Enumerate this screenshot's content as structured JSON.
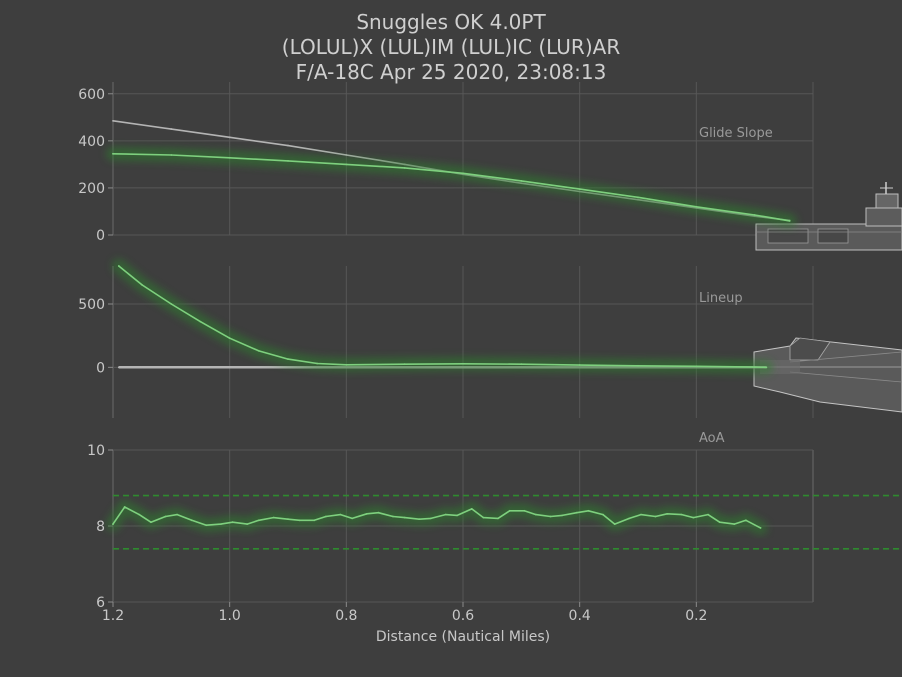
{
  "header": {
    "line1": "Snuggles OK 4.0PT",
    "line2": "(LOLUL)X (LUL)IM  (LUL)IC (LUR)AR",
    "line3": "F/A-18C Apr 25 2020, 23:08:13"
  },
  "chart_data": [
    {
      "type": "line",
      "label": "Glide Slope",
      "x": [
        1.2,
        1.1,
        1.0,
        0.9,
        0.8,
        0.7,
        0.6,
        0.5,
        0.4,
        0.3,
        0.2,
        0.1,
        0.04
      ],
      "series": [
        {
          "role": "ideal",
          "color": "#b4b4b4",
          "values": [
            485,
            450,
            415,
            380,
            340,
            300,
            258,
            220,
            185,
            150,
            115,
            80,
            62
          ]
        },
        {
          "role": "actual",
          "color": "#7ed07e",
          "values": [
            345,
            340,
            328,
            315,
            300,
            285,
            262,
            230,
            195,
            160,
            120,
            85,
            60
          ]
        }
      ],
      "xlim": [
        1.2,
        0.0
      ],
      "ylim": [
        0,
        650
      ],
      "yticks": [
        "0",
        "200",
        "400",
        "600"
      ],
      "ytick_values": [
        0,
        200,
        400,
        600
      ]
    },
    {
      "type": "line",
      "label": "Lineup",
      "x": [
        1.19,
        1.15,
        1.1,
        1.05,
        1.0,
        0.95,
        0.9,
        0.85,
        0.8,
        0.7,
        0.6,
        0.5,
        0.4,
        0.3,
        0.2,
        0.1,
        0.08
      ],
      "series": [
        {
          "role": "ideal",
          "color": "#b4b4b4",
          "values": [
            0,
            0,
            0,
            0,
            0,
            0,
            0,
            0,
            0,
            0,
            0,
            0,
            0,
            0,
            0,
            0,
            0
          ]
        },
        {
          "role": "actual",
          "color": "#7ed07e",
          "values": [
            800,
            650,
            500,
            360,
            230,
            130,
            65,
            30,
            20,
            25,
            28,
            25,
            18,
            12,
            8,
            2,
            0
          ]
        }
      ],
      "xlim": [
        1.2,
        0.0
      ],
      "ylim": [
        -400,
        800
      ],
      "yticks": [
        "0",
        "500"
      ],
      "ytick_values": [
        0,
        500
      ]
    },
    {
      "type": "line",
      "label": "AoA",
      "x": [
        1.2,
        1.18,
        1.155,
        1.135,
        1.11,
        1.09,
        1.065,
        1.04,
        1.015,
        0.995,
        0.97,
        0.95,
        0.925,
        0.9,
        0.88,
        0.855,
        0.835,
        0.81,
        0.79,
        0.765,
        0.745,
        0.72,
        0.7,
        0.675,
        0.655,
        0.63,
        0.61,
        0.585,
        0.565,
        0.54,
        0.52,
        0.495,
        0.475,
        0.45,
        0.43,
        0.405,
        0.385,
        0.36,
        0.34,
        0.315,
        0.295,
        0.27,
        0.25,
        0.225,
        0.205,
        0.18,
        0.16,
        0.135,
        0.115,
        0.09
      ],
      "series": [
        {
          "role": "actual",
          "color": "#7ed07e",
          "values": [
            8.05,
            8.5,
            8.3,
            8.1,
            8.25,
            8.3,
            8.15,
            8.02,
            8.05,
            8.1,
            8.05,
            8.15,
            8.22,
            8.18,
            8.15,
            8.15,
            8.25,
            8.3,
            8.2,
            8.32,
            8.35,
            8.25,
            8.22,
            8.18,
            8.2,
            8.3,
            8.28,
            8.45,
            8.22,
            8.2,
            8.4,
            8.4,
            8.3,
            8.25,
            8.28,
            8.35,
            8.4,
            8.3,
            8.05,
            8.2,
            8.3,
            8.25,
            8.32,
            8.3,
            8.22,
            8.3,
            8.1,
            8.05,
            8.15,
            7.95
          ]
        }
      ],
      "limits": [
        8.8,
        7.4
      ],
      "limits_color": "#2f8a2f",
      "xlim": [
        1.2,
        0.0
      ],
      "ylim": [
        6,
        10
      ],
      "yticks": [
        "6",
        "8",
        "10"
      ],
      "ytick_values": [
        6,
        8,
        10
      ]
    }
  ],
  "x_axis": {
    "label": "Distance (Nautical Miles)",
    "ticks": [
      "1.2",
      "1.0",
      "0.8",
      "0.6",
      "0.4",
      "0.2"
    ],
    "tick_values": [
      1.2,
      1.0,
      0.8,
      0.6,
      0.4,
      0.2
    ]
  },
  "style": {
    "background": "#3e3e3e",
    "grid": "#575757",
    "glow": "#2e7d2e"
  }
}
